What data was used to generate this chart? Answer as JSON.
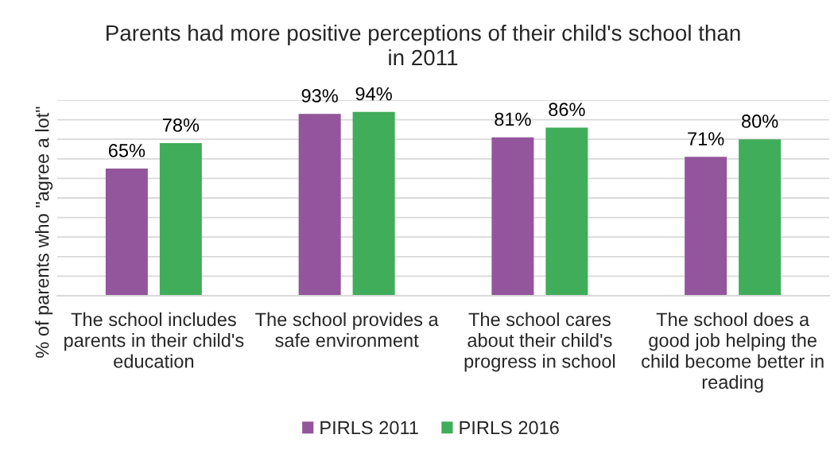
{
  "chart_data": {
    "type": "bar",
    "title": "Parents had more positive perceptions of their child's school than in 2011",
    "ylabel": "% of parents who \"agree a lot\"",
    "categories": [
      "The school includes parents in their child's education",
      "The school provides a safe environment",
      "The school cares about their child's progress in school",
      "The school does a good job helping the child become better in reading"
    ],
    "series": [
      {
        "name": "PIRLS 2011",
        "color": "#93559b",
        "values": [
          65,
          93,
          81,
          71
        ],
        "value_labels": [
          "65%",
          "93%",
          "81%",
          "71%"
        ]
      },
      {
        "name": "PIRLS 2016",
        "color": "#40ad5a",
        "values": [
          78,
          94,
          86,
          80
        ],
        "value_labels": [
          "78%",
          "94%",
          "86%",
          "80%"
        ]
      }
    ],
    "ylim": [
      0,
      100
    ],
    "yticks": [
      {
        "value": 0,
        "label": null
      },
      {
        "value": 10,
        "label": null
      },
      {
        "value": 20,
        "label": null
      },
      {
        "value": 30,
        "label": null
      },
      {
        "value": 40,
        "label": null
      },
      {
        "value": 50,
        "label": null
      },
      {
        "value": 60,
        "label": null
      },
      {
        "value": 70,
        "label": null
      },
      {
        "value": 80,
        "label": null
      },
      {
        "value": 90,
        "label": null
      },
      {
        "value": 100,
        "label": null
      }
    ],
    "grid": "y",
    "legend": "bottom",
    "tick_labels": "x"
  }
}
